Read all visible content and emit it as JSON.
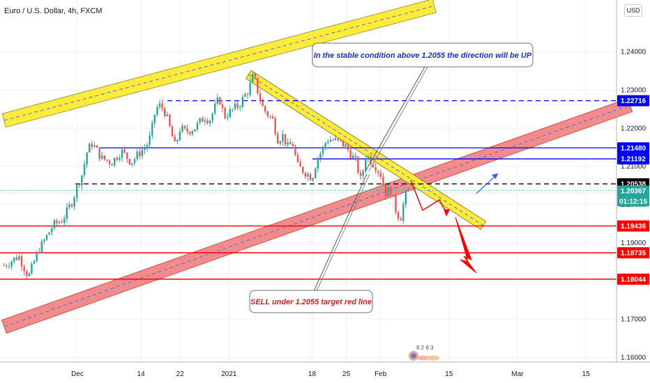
{
  "header": {
    "title": "Euro / U.S. Dollar, 4h, FXCM",
    "currency": "USD"
  },
  "colors": {
    "up_candle": "#26a69a",
    "down_candle": "#ef5350",
    "red_line": "#ff0000",
    "blue_line": "#0000ff",
    "yellow_channel": "#ffeb3b",
    "red_channel": "#f28b8b",
    "current_price_tag": "#26a69a"
  },
  "chart_data": {
    "type": "candlestick",
    "title": "Euro / U.S. Dollar, 4h, FXCM",
    "y_range": [
      1.1585,
      1.2465
    ],
    "y_ticks": [
      "1.24000",
      "1.23000",
      "1.22000",
      "1.21000",
      "1.20000",
      "1.19000",
      "1.17000",
      "1.16000"
    ],
    "x_ticks": [
      {
        "label": "Dec",
        "date": "2020-12-01"
      },
      {
        "label": "14",
        "date": "2020-12-14"
      },
      {
        "label": "22",
        "date": "2020-12-22"
      },
      {
        "label": "2021",
        "date": "2021-01-01"
      },
      {
        "label": "18",
        "date": "2021-01-18"
      },
      {
        "label": "25",
        "date": "2021-01-25"
      },
      {
        "label": "Feb",
        "date": "2021-02-01"
      },
      {
        "label": "15",
        "date": "2021-02-15"
      },
      {
        "label": "Mar",
        "date": "2021-03-01"
      },
      {
        "label": "15",
        "date": "2021-03-15"
      }
    ],
    "price_path": [
      [
        "2020-11-16",
        1.184
      ],
      [
        "2020-11-19",
        1.1865
      ],
      [
        "2020-11-21",
        1.181
      ],
      [
        "2020-11-23",
        1.188
      ],
      [
        "2020-11-24",
        1.19
      ],
      [
        "2020-11-26",
        1.1945
      ],
      [
        "2020-11-28",
        1.196
      ],
      [
        "2020-11-30",
        1.201
      ],
      [
        "2020-12-01",
        1.205
      ],
      [
        "2020-12-02",
        1.208
      ],
      [
        "2020-12-03",
        1.214
      ],
      [
        "2020-12-04",
        1.216
      ],
      [
        "2020-12-06",
        1.212
      ],
      [
        "2020-12-08",
        1.211
      ],
      [
        "2020-12-10",
        1.214
      ],
      [
        "2020-12-12",
        1.211
      ],
      [
        "2020-12-14",
        1.214
      ],
      [
        "2020-12-15",
        1.215
      ],
      [
        "2020-12-16",
        1.218
      ],
      [
        "2020-12-17",
        1.225
      ],
      [
        "2020-12-18",
        1.226
      ],
      [
        "2020-12-19",
        1.224
      ],
      [
        "2020-12-21",
        1.215
      ],
      [
        "2020-12-22",
        1.22
      ],
      [
        "2020-12-23",
        1.219
      ],
      [
        "2020-12-25",
        1.22
      ],
      [
        "2020-12-27",
        1.223
      ],
      [
        "2020-12-28",
        1.222
      ],
      [
        "2020-12-29",
        1.225
      ],
      [
        "2020-12-30",
        1.228
      ],
      [
        "2020-12-31",
        1.223
      ],
      [
        "2021-01-01",
        1.224
      ],
      [
        "2021-01-03",
        1.226
      ],
      [
        "2021-01-05",
        1.23
      ],
      [
        "2021-01-06",
        1.234
      ],
      [
        "2021-01-07",
        1.229
      ],
      [
        "2021-01-08",
        1.225
      ],
      [
        "2021-01-10",
        1.222
      ],
      [
        "2021-01-11",
        1.217
      ],
      [
        "2021-01-12",
        1.218
      ],
      [
        "2021-01-13",
        1.215
      ],
      [
        "2021-01-14",
        1.216
      ],
      [
        "2021-01-15",
        1.21
      ],
      [
        "2021-01-17",
        1.208
      ],
      [
        "2021-01-18",
        1.207
      ],
      [
        "2021-01-19",
        1.212
      ],
      [
        "2021-01-20",
        1.214
      ],
      [
        "2021-01-21",
        1.217
      ],
      [
        "2021-01-22",
        1.217
      ],
      [
        "2021-01-24",
        1.216
      ],
      [
        "2021-01-25",
        1.215
      ],
      [
        "2021-01-26",
        1.213
      ],
      [
        "2021-01-27",
        1.211
      ],
      [
        "2021-01-28",
        1.206
      ],
      [
        "2021-01-29",
        1.213
      ],
      [
        "2021-01-31",
        1.21
      ],
      [
        "2021-02-01",
        1.208
      ],
      [
        "2021-02-02",
        1.203
      ],
      [
        "2021-02-03",
        1.204
      ],
      [
        "2021-02-04",
        1.199
      ],
      [
        "2021-02-05",
        1.196
      ],
      [
        "2021-02-06",
        1.202
      ],
      [
        "2021-02-07",
        1.2037
      ]
    ],
    "current_price": 1.20367,
    "levels": [
      {
        "value": 1.22716,
        "color": "blue",
        "style": "dashed",
        "label": "1.22716"
      },
      {
        "value": 1.2148,
        "color": "blue",
        "style": "solid",
        "label": "1.21480"
      },
      {
        "value": 1.21192,
        "color": "blue",
        "style": "solid",
        "label": "1.21192"
      },
      {
        "value": 1.20538,
        "color": "black",
        "style": "dashed",
        "label": "1.20538"
      },
      {
        "value": 1.19436,
        "color": "red",
        "style": "solid",
        "label": "1.19436"
      },
      {
        "value": 1.18735,
        "color": "red",
        "style": "solid",
        "label": "1.18735"
      },
      {
        "value": 1.18044,
        "color": "red",
        "style": "solid",
        "label": "1.18044"
      }
    ],
    "price_tag": {
      "value": "1.20367",
      "countdown": "01:12:15"
    },
    "annotations": [
      {
        "text": "In the stable condition above 1.2055 the direction will be UP",
        "color": "blue"
      },
      {
        "text": "SELL under 1.2055 target red line",
        "color": "red"
      }
    ],
    "yellow_channel": {
      "from": [
        "2020-11-16",
        1.222
      ],
      "to": [
        "2021-02-12",
        1.252
      ]
    },
    "yellow_trend": {
      "from": [
        "2021-01-05",
        1.234
      ],
      "to": [
        "2021-02-22",
        1.1945
      ]
    },
    "red_channel": {
      "from": [
        "2020-11-16",
        1.168
      ],
      "to": [
        "2021-03-24",
        1.226
      ]
    },
    "logo_digits": "8 2 8 3"
  }
}
